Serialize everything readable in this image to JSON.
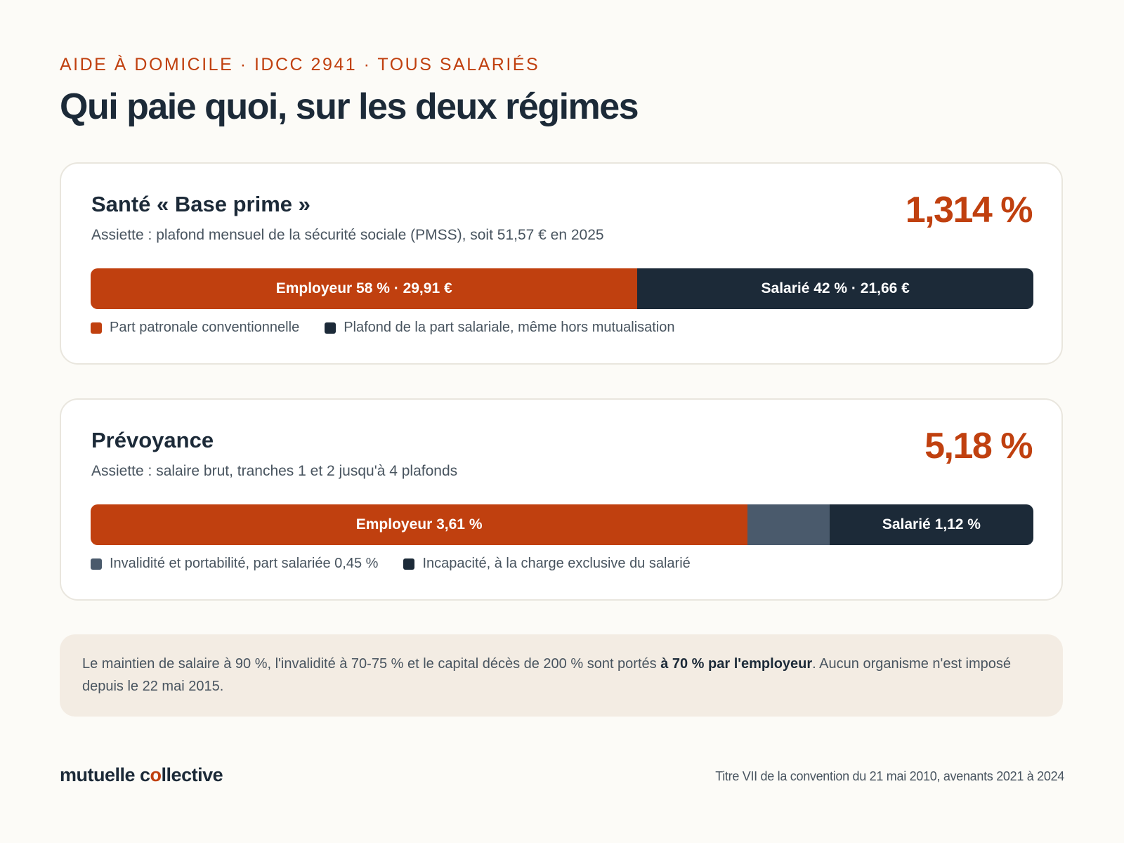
{
  "header": {
    "eyebrow": "AIDE À DOMICILE · IDCC 2941 · TOUS SALARIÉS",
    "title": "Qui paie quoi, sur les deux régimes"
  },
  "colors": {
    "employer": "#c0400f",
    "employee": "#1c2a38",
    "invalidity": "#4a5a6c"
  },
  "chart_data": [
    {
      "type": "bar",
      "orientation": "horizontal-stacked",
      "title": "Santé « Base prime »",
      "subtitle": "Assiette : plafond mensuel de la sécurité sociale (PMSS), soit 51,57 € en 2025",
      "total_label": "1,314 %",
      "total_value": 1.314,
      "series": [
        {
          "name": "Part patronale conventionnelle",
          "label": "Employeur 58 % · 29,91 €",
          "value": 58,
          "color": "#c0400f"
        },
        {
          "name": "Plafond de la part salariale, même hors mutualisation",
          "label": "Salarié 42 % · 21,66 €",
          "value": 42,
          "color": "#1c2a38"
        }
      ],
      "legend": [
        {
          "label": "Part patronale conventionnelle",
          "color": "#c0400f"
        },
        {
          "label": "Plafond de la part salariale, même hors mutualisation",
          "color": "#1c2a38"
        }
      ]
    },
    {
      "type": "bar",
      "orientation": "horizontal-stacked",
      "title": "Prévoyance",
      "subtitle": "Assiette : salaire brut, tranches 1 et 2 jusqu'à 4 plafonds",
      "total_label": "5,18 %",
      "total_value": 5.18,
      "series": [
        {
          "name": "Employeur",
          "label": "Employeur 3,61 %",
          "value": 3.61,
          "color": "#c0400f"
        },
        {
          "name": "Invalidité et portabilité, part salariée 0,45 %",
          "label": "",
          "value": 0.45,
          "color": "#4a5a6c"
        },
        {
          "name": "Incapacité, à la charge exclusive du salarié",
          "label": "Salarié 1,12 %",
          "value": 1.12,
          "color": "#1c2a38"
        }
      ],
      "legend": [
        {
          "label": "Invalidité et portabilité, part salariée 0,45 %",
          "color": "#4a5a6c"
        },
        {
          "label": "Incapacité, à la charge exclusive du salarié",
          "color": "#1c2a38"
        }
      ]
    }
  ],
  "note": {
    "text_before": "Le maintien de salaire à 90 %, l'invalidité à 70-75 % et le capital décès de 200 % sont portés ",
    "text_bold": "à 70 % par l'employeur",
    "text_after": ". Aucun organisme n'est imposé depuis le 22 mai 2015."
  },
  "footer": {
    "brand_before": "mutuelle c",
    "brand_o": "o",
    "brand_after": "llective",
    "source": "Titre VII de la convention du 21 mai 2010, avenants 2021 à 2024"
  }
}
